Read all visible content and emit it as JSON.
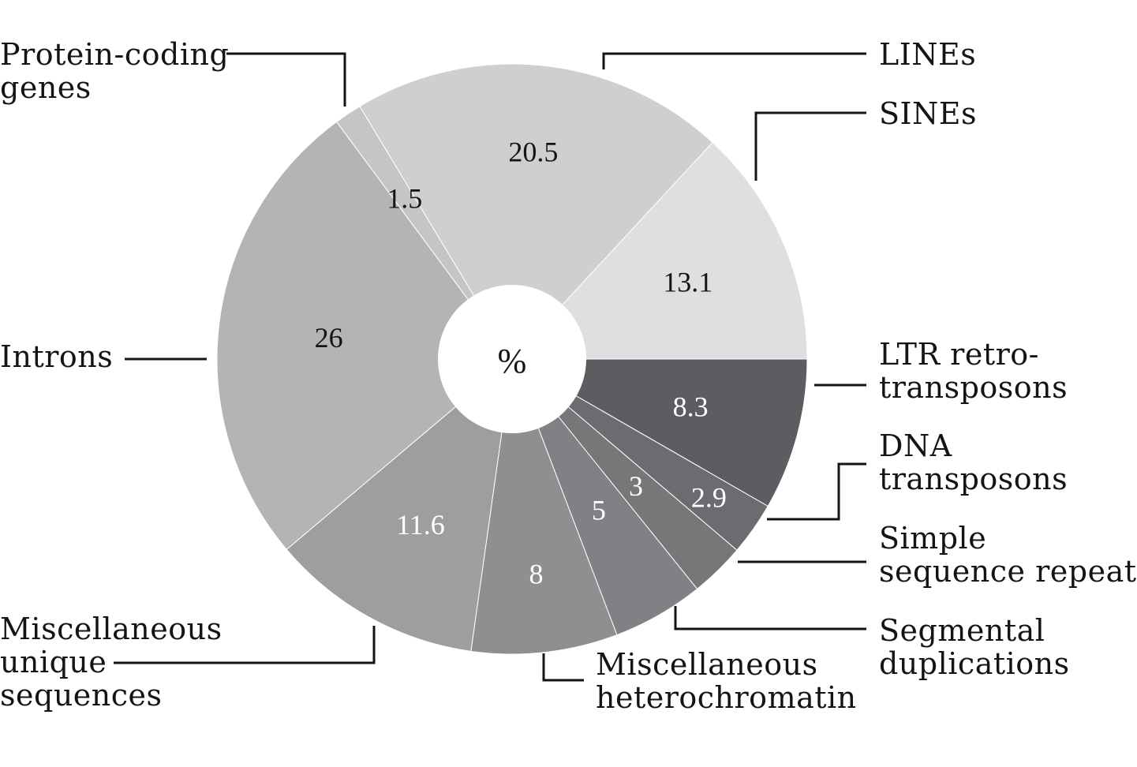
{
  "chart_data": {
    "type": "pie",
    "center_label": "%",
    "slices": [
      {
        "name": "LTR retrotransposons",
        "label_lines": [
          "LTR retro-",
          "transposons"
        ],
        "value": 8.3,
        "value_text": "8.3",
        "color": "#5c5d60",
        "text_color": "#ffffff"
      },
      {
        "name": "DNA transposons",
        "label_lines": [
          "DNA",
          "transposons"
        ],
        "value": 2.9,
        "value_text": "2.9",
        "color": "#6b6c6f",
        "text_color": "#ffffff"
      },
      {
        "name": "Simple sequence repeats",
        "label_lines": [
          "Simple",
          "sequence repeats"
        ],
        "value": 3,
        "value_text": "3",
        "color": "#767779",
        "text_color": "#ffffff"
      },
      {
        "name": "Segmental duplications",
        "label_lines": [
          "Segmental",
          "duplications"
        ],
        "value": 5,
        "value_text": "5",
        "color": "#808184",
        "text_color": "#ffffff"
      },
      {
        "name": "Miscellaneous heterochromatin",
        "label_lines": [
          "Miscellaneous",
          "heterochromatin"
        ],
        "value": 8,
        "value_text": "8",
        "color": "#8e8f91",
        "text_color": "#ffffff"
      },
      {
        "name": "Miscellaneous unique sequences",
        "label_lines": [
          "Miscellaneous",
          "unique",
          "sequences"
        ],
        "value": 11.6,
        "value_text": "11.6",
        "color": "#9d9ea0",
        "text_color": "#ffffff"
      },
      {
        "name": "Introns",
        "label_lines": [
          "Introns"
        ],
        "value": 26,
        "value_text": "26",
        "color": "#b3b4b6",
        "text_color": "#141414"
      },
      {
        "name": "Protein-coding genes",
        "label_lines": [
          "Protein-coding",
          "genes"
        ],
        "value": 1.5,
        "value_text": "1.5",
        "color": "#c4c5c7",
        "text_color": "#141414"
      },
      {
        "name": "LINEs",
        "label_lines": [
          "LINEs"
        ],
        "value": 20.5,
        "value_text": "20.5",
        "color": "#cecfd1",
        "text_color": "#141414"
      },
      {
        "name": "SINEs",
        "label_lines": [
          "SINEs"
        ],
        "value": 13.1,
        "value_text": "13.1",
        "color": "#dedfe1",
        "text_color": "#141414"
      }
    ]
  }
}
